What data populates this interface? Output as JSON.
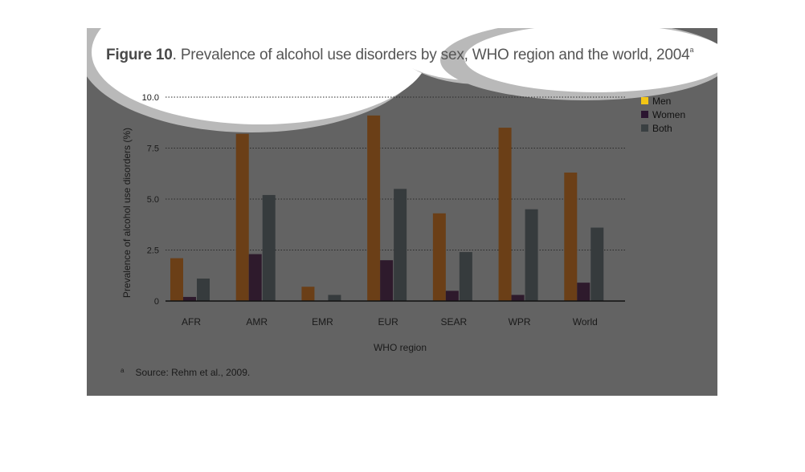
{
  "figure": {
    "title_bold": "Figure 10",
    "title_rest": ". Prevalence of alcohol use disorders by sex, WHO region and the world, 2004",
    "title_sup": "a",
    "footnote_mark": "a",
    "footnote_text": "Source: Rehm et al., 2009."
  },
  "chart_data": {
    "type": "bar",
    "title": "Prevalence of alcohol use disorders by sex, WHO region and the world, 2004",
    "xlabel": "WHO region",
    "ylabel": "Prevalence of alcohol use disorders (%)",
    "categories": [
      "AFR",
      "AMR",
      "EMR",
      "EUR",
      "SEAR",
      "WPR",
      "World"
    ],
    "series": [
      {
        "name": "Men",
        "color": "#6b3f17",
        "values": [
          2.1,
          8.2,
          0.7,
          9.1,
          4.3,
          8.5,
          6.3
        ]
      },
      {
        "name": "Women",
        "color": "#2e1a2c",
        "values": [
          0.2,
          2.3,
          0.0,
          2.0,
          0.5,
          0.3,
          0.9
        ]
      },
      {
        "name": "Both",
        "color": "#363b3d",
        "values": [
          1.1,
          5.2,
          0.3,
          5.5,
          2.4,
          4.5,
          3.6
        ]
      }
    ],
    "ylim": [
      0,
      10
    ],
    "yticks": [
      "0",
      "2.5",
      "5.0",
      "7.5",
      "10.0"
    ],
    "ytick_values": [
      0,
      2.5,
      5.0,
      7.5,
      10.0
    ],
    "legend_swatch_colors": [
      "#f2c515",
      "#2b1530",
      "#3a4042"
    ],
    "grid": true,
    "legend_position": "top-right"
  }
}
